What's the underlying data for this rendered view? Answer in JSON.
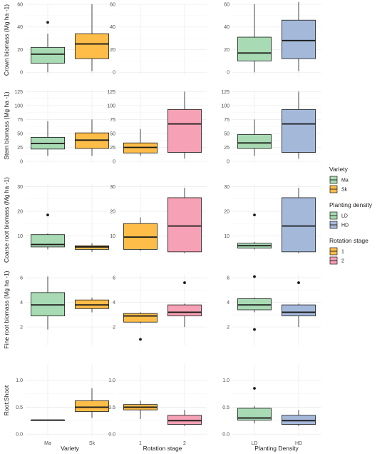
{
  "colors": {
    "Ma": "#a8dbb3",
    "Sk": "#fdbd48",
    "LD": "#a8dbb3",
    "HD": "#a4b8da",
    "rot1": "#fdbd48",
    "rot2": "#f6a1b5",
    "grid": "#ececec",
    "line": "#1a1a1a"
  },
  "columns": [
    {
      "xlabel": "Variety",
      "categories": [
        "Ma",
        "Sk"
      ]
    },
    {
      "xlabel": "Rotation stage",
      "categories": [
        "1",
        "2"
      ]
    },
    {
      "xlabel": "Planting Density",
      "categories": [
        "LD",
        "HD"
      ]
    }
  ],
  "rows": [
    {
      "ylabel": "Crown biomass (Mg ha -1)",
      "ylim": [
        -3,
        60
      ],
      "ticks": [
        0,
        20,
        40,
        60
      ]
    },
    {
      "ylabel": "Stem biomass (Mg ha -1)",
      "ylim": [
        0,
        128
      ],
      "ticks": [
        0,
        25,
        50,
        75,
        100,
        125
      ]
    },
    {
      "ylabel": "Coarse root biomass (Mg ha -1)",
      "ylim": [
        2,
        31
      ],
      "ticks": [
        10,
        20,
        30
      ]
    },
    {
      "ylabel": "Fine root biomass (Mg ha -1)",
      "ylim": [
        0.5,
        6.3
      ],
      "ticks": [
        2,
        4,
        6
      ]
    },
    {
      "ylabel": "Root:Shoot",
      "ylim": [
        -0.05,
        1.3
      ],
      "ticks": [
        0.0,
        0.5,
        1.0
      ]
    }
  ],
  "legend": [
    {
      "title": "Variety",
      "items": [
        {
          "label": "Ma",
          "color": "#a8dbb3"
        },
        {
          "label": "Sk",
          "color": "#fdbd48"
        }
      ]
    },
    {
      "title": "Planting density",
      "items": [
        {
          "label": "LD",
          "color": "#a8dbb3"
        },
        {
          "label": "HD",
          "color": "#a4b8da"
        }
      ]
    },
    {
      "title": "Rotation stage",
      "items": [
        {
          "label": "1",
          "color": "#fdbd48"
        },
        {
          "label": "2",
          "color": "#f6a1b5"
        }
      ]
    }
  ],
  "chart_data": {
    "type": "box",
    "panels": [
      {
        "row": 0,
        "col": 0,
        "boxes": [
          {
            "category": "Ma",
            "color": "#a8dbb3",
            "whisker_low": 0,
            "q1": 8,
            "median": 16,
            "q3": 22,
            "whisker_high": 34,
            "outliers": [
              44
            ]
          },
          {
            "category": "Sk",
            "color": "#fdbd48",
            "whisker_low": 1,
            "q1": 12,
            "median": 25,
            "q3": 34,
            "whisker_high": 60,
            "outliers": []
          }
        ]
      },
      {
        "row": 0,
        "col": 1,
        "boxes": []
      },
      {
        "row": 0,
        "col": 2,
        "boxes": [
          {
            "category": "LD",
            "color": "#a8dbb3",
            "whisker_low": 0,
            "q1": 10,
            "median": 17,
            "q3": 31,
            "whisker_high": 60,
            "outliers": []
          },
          {
            "category": "HD",
            "color": "#a4b8da",
            "whisker_low": 1,
            "q1": 12,
            "median": 28,
            "q3": 46,
            "whisker_high": 62,
            "outliers": []
          }
        ]
      },
      {
        "row": 1,
        "col": 0,
        "boxes": [
          {
            "category": "Ma",
            "color": "#a8dbb3",
            "whisker_low": 10,
            "q1": 22,
            "median": 32,
            "q3": 43,
            "whisker_high": 72,
            "outliers": []
          },
          {
            "category": "Sk",
            "color": "#fdbd48",
            "whisker_low": 10,
            "q1": 23,
            "median": 38,
            "q3": 51,
            "whisker_high": 75,
            "outliers": []
          }
        ]
      },
      {
        "row": 1,
        "col": 1,
        "boxes": [
          {
            "category": "1",
            "color": "#fdbd48",
            "whisker_low": 10,
            "q1": 15,
            "median": 25,
            "q3": 33,
            "whisker_high": 58,
            "outliers": []
          },
          {
            "category": "2",
            "color": "#f6a1b5",
            "whisker_low": 5,
            "q1": 16,
            "median": 67,
            "q3": 93,
            "whisker_high": 125,
            "outliers": []
          }
        ]
      },
      {
        "row": 1,
        "col": 2,
        "boxes": [
          {
            "category": "LD",
            "color": "#a8dbb3",
            "whisker_low": 10,
            "q1": 23,
            "median": 33,
            "q3": 48,
            "whisker_high": 75,
            "outliers": []
          },
          {
            "category": "HD",
            "color": "#a4b8da",
            "whisker_low": 5,
            "q1": 16,
            "median": 67,
            "q3": 93,
            "whisker_high": 125,
            "outliers": []
          }
        ]
      },
      {
        "row": 2,
        "col": 0,
        "boxes": [
          {
            "category": "Ma",
            "color": "#a8dbb3",
            "whisker_low": 4.5,
            "q1": 5.5,
            "median": 6.5,
            "q3": 10.5,
            "whisker_high": 11,
            "outliers": [
              18.5
            ]
          },
          {
            "category": "Sk",
            "color": "#fdbd48",
            "whisker_low": 3.5,
            "q1": 4.5,
            "median": 5.5,
            "q3": 6,
            "whisker_high": 7,
            "outliers": []
          }
        ]
      },
      {
        "row": 2,
        "col": 1,
        "boxes": [
          {
            "category": "1",
            "color": "#fdbd48",
            "whisker_low": 4,
            "q1": 4.5,
            "median": 9.5,
            "q3": 15,
            "whisker_high": 17.5,
            "outliers": []
          },
          {
            "category": "2",
            "color": "#f6a1b5",
            "whisker_low": 3,
            "q1": 3.5,
            "median": 14,
            "q3": 25.5,
            "whisker_high": 29.5,
            "outliers": []
          }
        ]
      },
      {
        "row": 2,
        "col": 2,
        "boxes": [
          {
            "category": "LD",
            "color": "#a8dbb3",
            "whisker_low": 4.5,
            "q1": 5,
            "median": 6,
            "q3": 7,
            "whisker_high": 7.5,
            "outliers": [
              18.5
            ]
          },
          {
            "category": "HD",
            "color": "#a4b8da",
            "whisker_low": 3,
            "q1": 3.5,
            "median": 14,
            "q3": 25.5,
            "whisker_high": 29.5,
            "outliers": []
          }
        ]
      },
      {
        "row": 3,
        "col": 0,
        "boxes": [
          {
            "category": "Ma",
            "color": "#a8dbb3",
            "whisker_low": 1.8,
            "q1": 2.9,
            "median": 3.8,
            "q3": 4.8,
            "whisker_high": 6.1,
            "outliers": []
          },
          {
            "category": "Sk",
            "color": "#fdbd48",
            "whisker_low": 3.2,
            "q1": 3.5,
            "median": 3.8,
            "q3": 4.2,
            "whisker_high": 4.4,
            "outliers": []
          }
        ]
      },
      {
        "row": 3,
        "col": 1,
        "boxes": [
          {
            "category": "1",
            "color": "#fdbd48",
            "whisker_low": 2.3,
            "q1": 2.4,
            "median": 2.9,
            "q3": 3.1,
            "whisker_high": 3.2,
            "outliers": [
              1.0
            ]
          },
          {
            "category": "2",
            "color": "#f6a1b5",
            "whisker_low": 2.0,
            "q1": 2.9,
            "median": 3.2,
            "q3": 3.8,
            "whisker_high": 3.9,
            "outliers": [
              5.6
            ]
          }
        ]
      },
      {
        "row": 3,
        "col": 2,
        "boxes": [
          {
            "category": "LD",
            "color": "#a8dbb3",
            "whisker_low": 3.2,
            "q1": 3.4,
            "median": 3.8,
            "q3": 4.3,
            "whisker_high": 4.4,
            "outliers": [
              6.1,
              1.8
            ]
          },
          {
            "category": "HD",
            "color": "#a4b8da",
            "whisker_low": 2.0,
            "q1": 2.9,
            "median": 3.2,
            "q3": 3.8,
            "whisker_high": 3.9,
            "outliers": [
              5.6
            ]
          }
        ]
      },
      {
        "row": 4,
        "col": 0,
        "boxes": [
          {
            "category": "Ma",
            "color": "#a8dbb3",
            "whisker_low": 0.26,
            "q1": 0.26,
            "median": 0.26,
            "q3": 0.26,
            "whisker_high": 0.26,
            "outliers": []
          },
          {
            "category": "Sk",
            "color": "#fdbd48",
            "whisker_low": 0.3,
            "q1": 0.42,
            "median": 0.5,
            "q3": 0.62,
            "whisker_high": 0.85,
            "outliers": []
          }
        ]
      },
      {
        "row": 4,
        "col": 1,
        "boxes": [
          {
            "category": "1",
            "color": "#fdbd48",
            "whisker_low": 0.28,
            "q1": 0.45,
            "median": 0.5,
            "q3": 0.55,
            "whisker_high": 0.62,
            "outliers": []
          },
          {
            "category": "2",
            "color": "#f6a1b5",
            "whisker_low": 0.15,
            "q1": 0.18,
            "median": 0.25,
            "q3": 0.35,
            "whisker_high": 0.45,
            "outliers": []
          }
        ]
      },
      {
        "row": 4,
        "col": 2,
        "boxes": [
          {
            "category": "LD",
            "color": "#a8dbb3",
            "whisker_low": 0.2,
            "q1": 0.26,
            "median": 0.3,
            "q3": 0.48,
            "whisker_high": 0.52,
            "outliers": [
              0.85
            ]
          },
          {
            "category": "HD",
            "color": "#a4b8da",
            "whisker_low": 0.15,
            "q1": 0.18,
            "median": 0.25,
            "q3": 0.35,
            "whisker_high": 0.45,
            "outliers": []
          }
        ]
      }
    ]
  }
}
